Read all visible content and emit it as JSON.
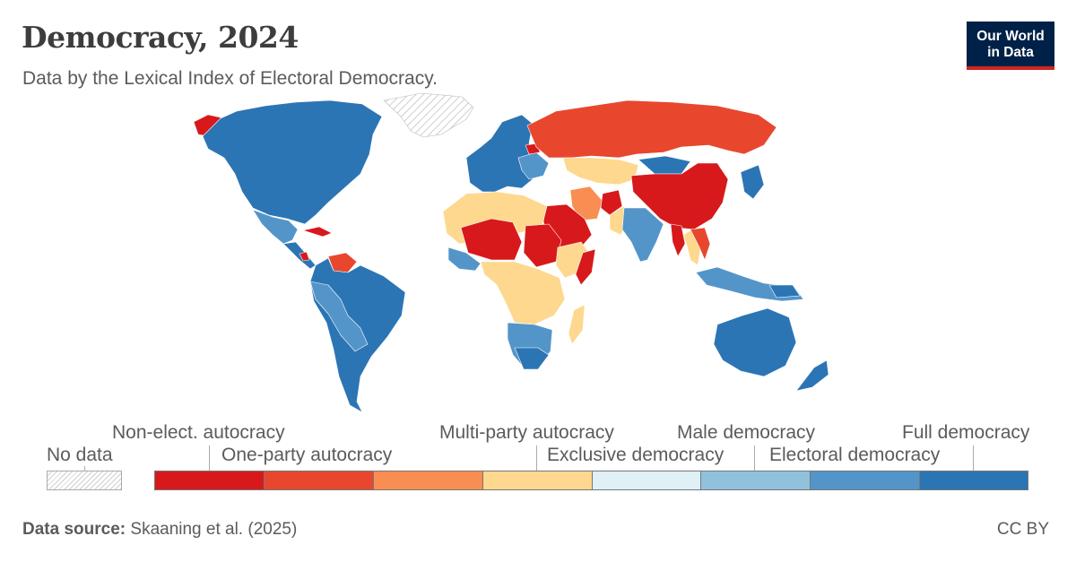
{
  "header": {
    "title": "Democracy, 2024",
    "subtitle": "Data by the Lexical Index of Electoral Democracy.",
    "logo_line1": "Our World",
    "logo_line2": "in Data"
  },
  "legend": {
    "no_data_label": "No data",
    "categories": [
      {
        "label": "Non-elect. autocracy",
        "color": "#d7191c"
      },
      {
        "label": "One-party autocracy",
        "color": "#e8472e"
      },
      {
        "label": "Multi-party autocracy",
        "color": "#f98e52"
      },
      {
        "label": "Exclusive democracy",
        "color": "#fdd88e"
      },
      {
        "label": "Male democracy",
        "color": "#dff0f7"
      },
      {
        "label": "Electoral democracy",
        "color": "#90c1dd"
      },
      {
        "label": "Full democracy",
        "color": "#5495c9"
      },
      {
        "label": "",
        "color": "#2c75b5"
      }
    ]
  },
  "footer": {
    "source_label": "Data source:",
    "source_value": "Skaaning et al. (2025)",
    "license": "CC BY"
  },
  "colors": {
    "non_elect_autocracy": "#d7191c",
    "one_party_autocracy": "#e8472e",
    "multi_party_autocracy": "#f98e52",
    "exclusive_democracy": "#fdd88e",
    "male_democracy": "#dff0f7",
    "electoral_democracy": "#90c1dd",
    "full_democracy": "#5495c9",
    "top_category": "#2c75b5",
    "no_data": "#e6e6e6"
  }
}
